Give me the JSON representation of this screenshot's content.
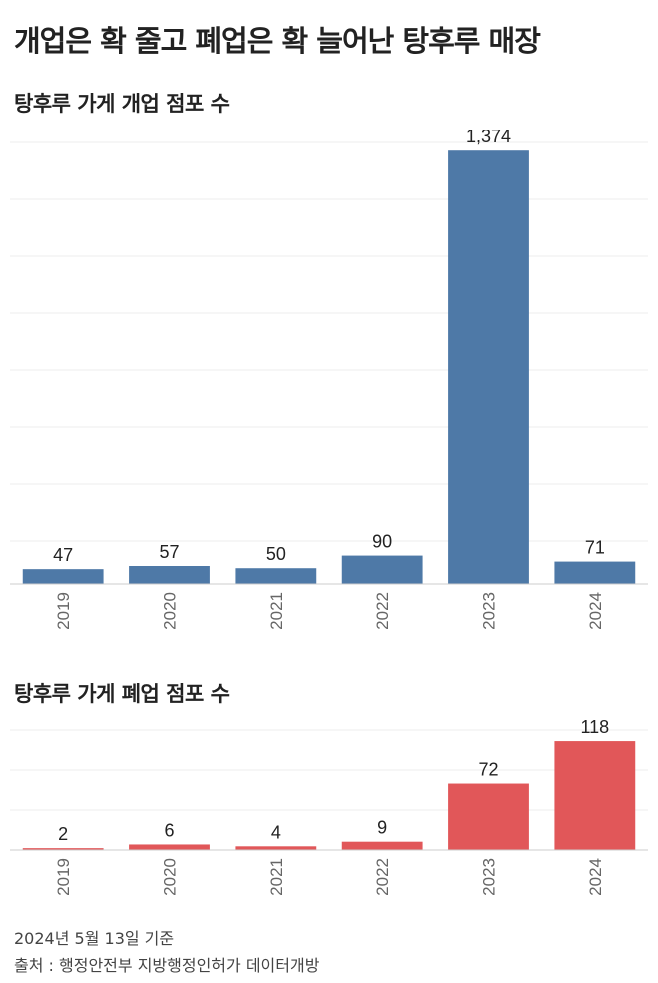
{
  "title": "개업은 확 줄고 폐업은 확 늘어난 탕후루 매장",
  "footer": {
    "date_note": "2024년 5월 13일 기준",
    "source": "출처 : 행정안전부 지방행정인허가 데이터개방"
  },
  "chart_data": [
    {
      "type": "bar",
      "title": "탕후루 가게 개업 점포 수",
      "categories": [
        "2019",
        "2020",
        "2021",
        "2022",
        "2023",
        "2024"
      ],
      "values": [
        47,
        57,
        50,
        90,
        1374,
        71
      ],
      "value_labels": [
        "47",
        "57",
        "50",
        "90",
        "1,374",
        "71"
      ],
      "ylim": [
        0,
        1400
      ],
      "grid": true,
      "color": "#4e79a7"
    },
    {
      "type": "bar",
      "title": "탕후루 가게 폐업 점포 수",
      "categories": [
        "2019",
        "2020",
        "2021",
        "2022",
        "2023",
        "2024"
      ],
      "values": [
        2,
        6,
        4,
        9,
        72,
        118
      ],
      "value_labels": [
        "2",
        "6",
        "4",
        "9",
        "72",
        "118"
      ],
      "ylim": [
        0,
        130
      ],
      "grid": true,
      "color": "#e15759"
    }
  ]
}
